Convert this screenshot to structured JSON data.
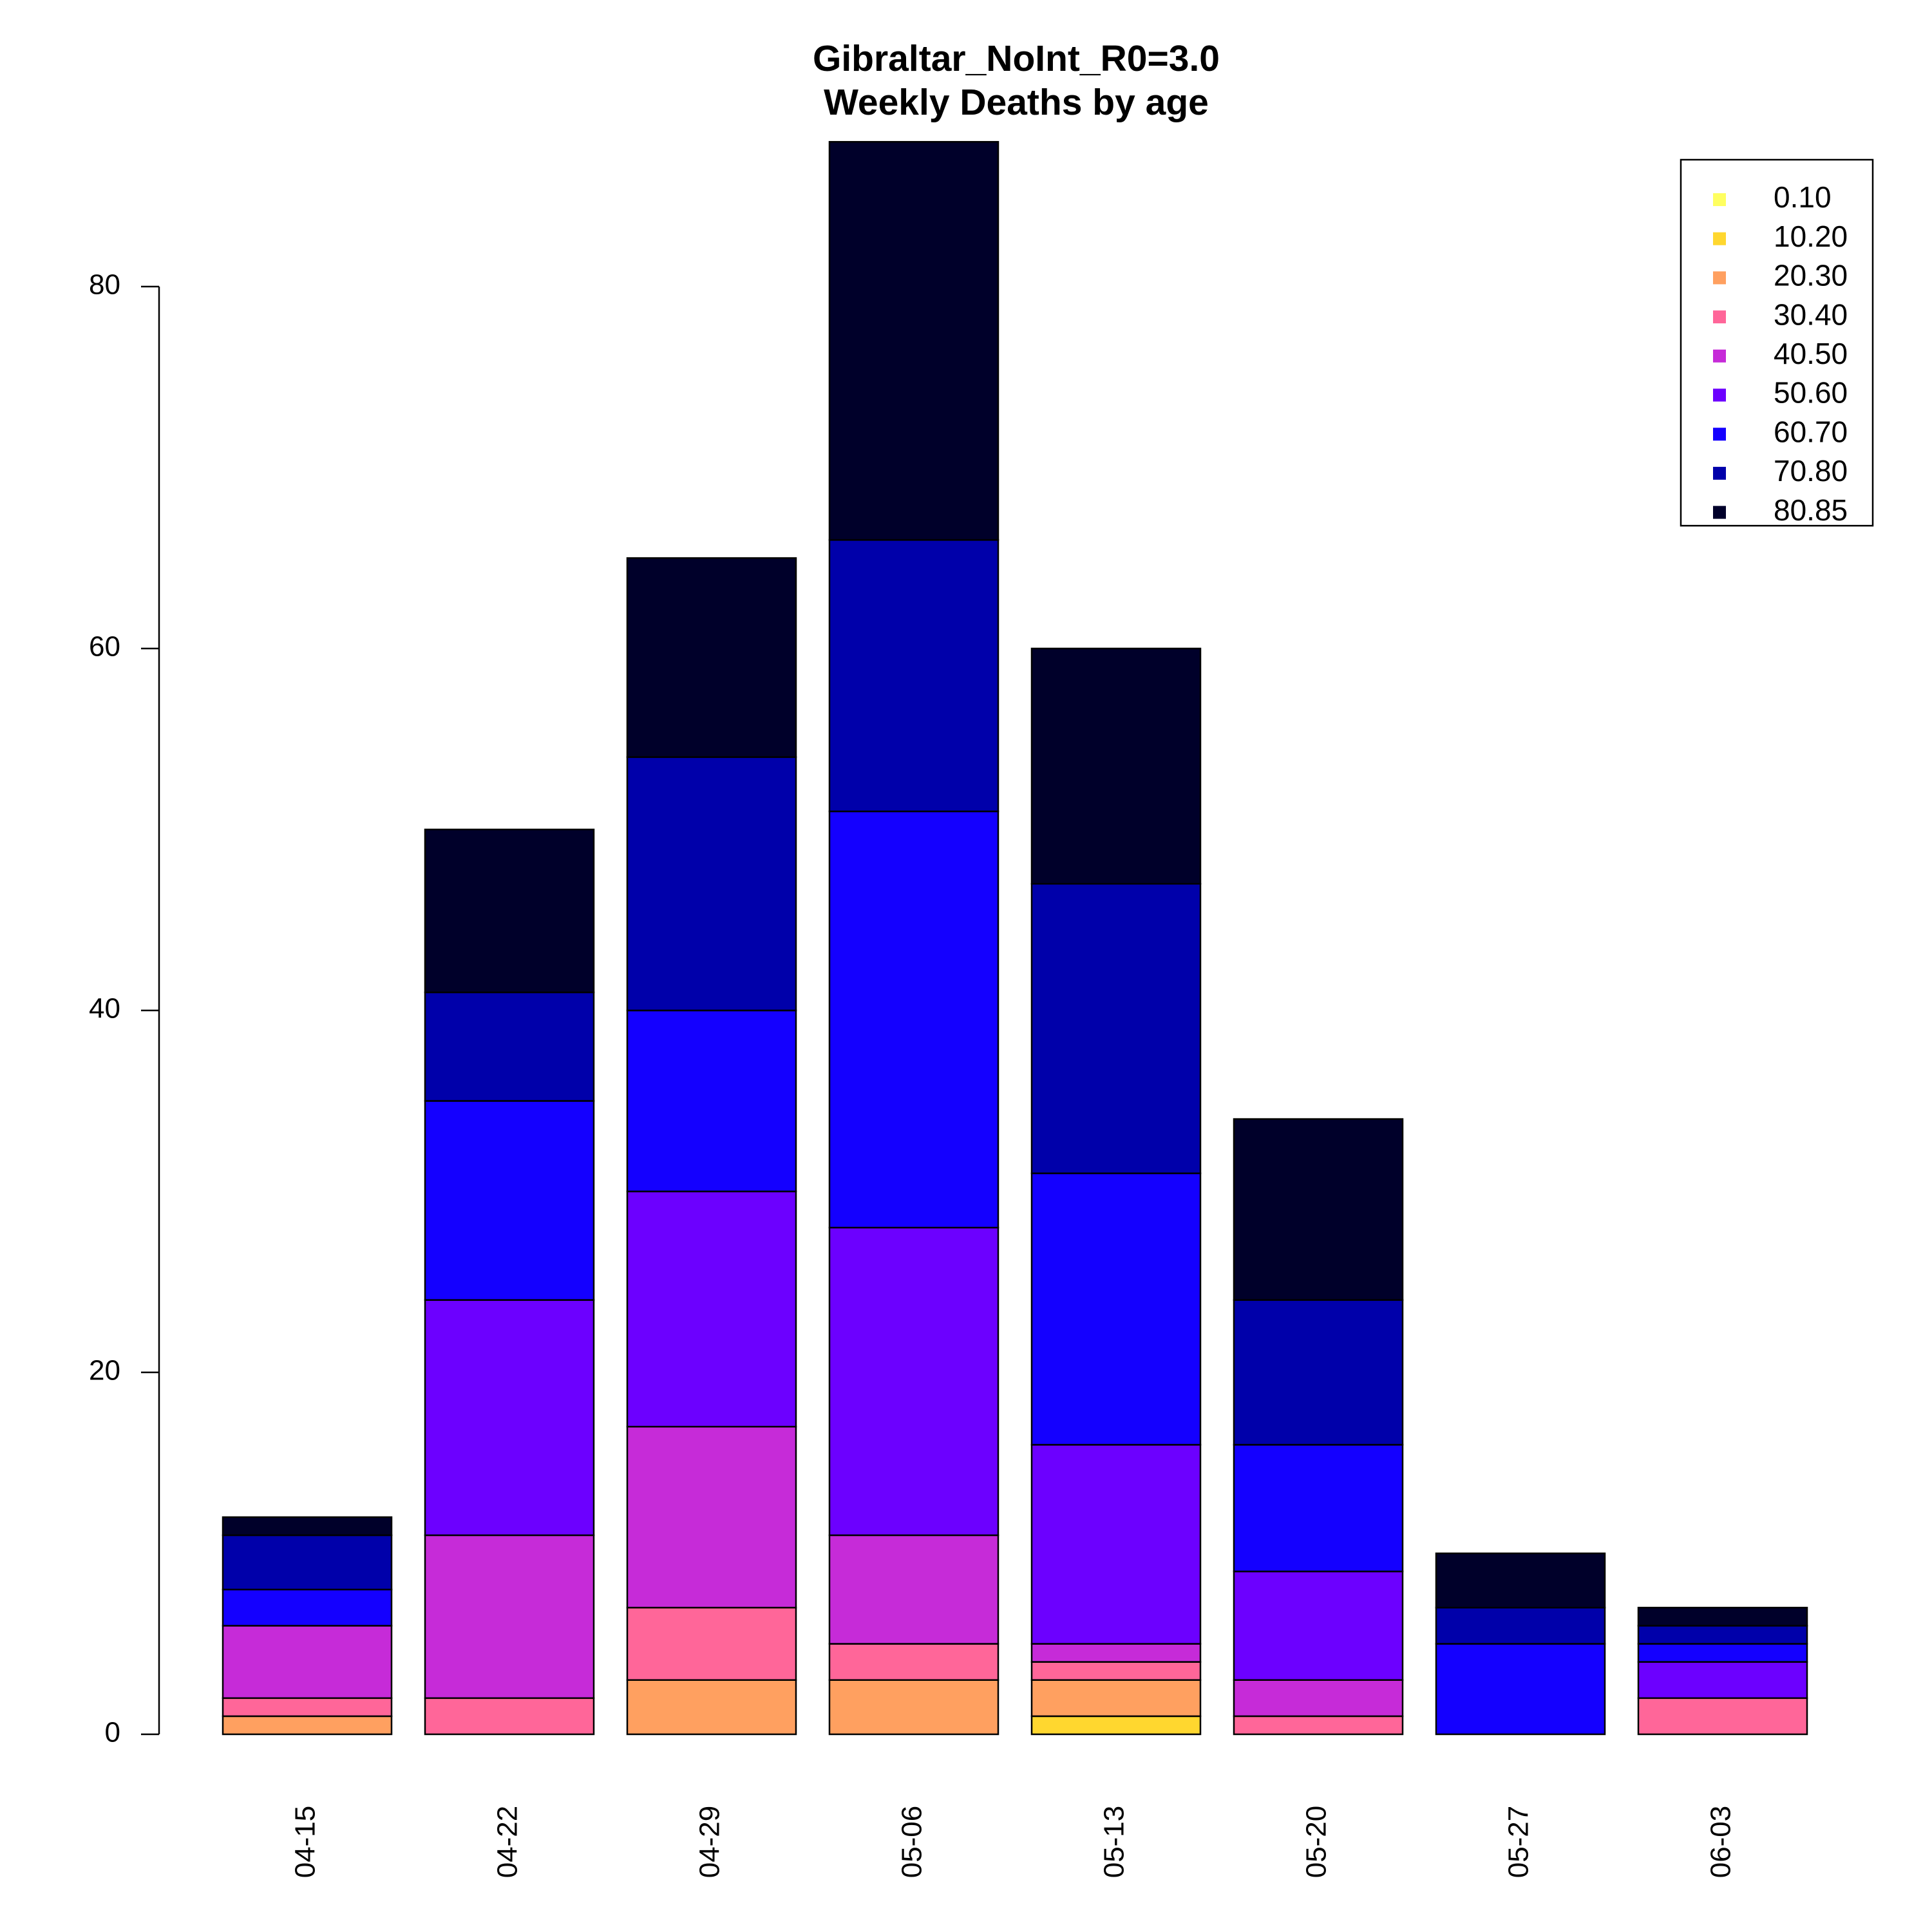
{
  "chart_data": {
    "type": "bar",
    "stacked": true,
    "title": "Gibraltar_NoInt_R0=3.0",
    "subtitle": "Weekly Deaths by age",
    "xlabel": "",
    "ylabel": "",
    "ylim": [
      0,
      88
    ],
    "yticks": [
      0,
      20,
      40,
      60,
      80
    ],
    "grid": false,
    "legend_position": "top-right",
    "categories": [
      "04-15",
      "04-22",
      "04-29",
      "05-06",
      "05-13",
      "05-20",
      "05-27",
      "06-03"
    ],
    "series": [
      {
        "name": "0.10",
        "color": "#ffff60",
        "values": [
          0,
          0,
          0,
          0,
          0,
          0,
          0,
          0
        ]
      },
      {
        "name": "10.20",
        "color": "#ffd72f",
        "values": [
          0,
          0,
          0,
          0,
          1,
          0,
          0,
          0
        ]
      },
      {
        "name": "20.30",
        "color": "#ffa060",
        "values": [
          1,
          0,
          3,
          3,
          2,
          0,
          0,
          0
        ]
      },
      {
        "name": "30.40",
        "color": "#ff6699",
        "values": [
          1,
          2,
          4,
          2,
          1,
          1,
          0,
          2
        ]
      },
      {
        "name": "40.50",
        "color": "#c62bd8",
        "values": [
          4,
          9,
          10,
          6,
          1,
          2,
          0,
          0
        ]
      },
      {
        "name": "50.60",
        "color": "#6c00ff",
        "values": [
          0,
          13,
          13,
          17,
          11,
          6,
          0,
          2
        ]
      },
      {
        "name": "60.70",
        "color": "#1400ff",
        "values": [
          2,
          11,
          10,
          23,
          15,
          7,
          5,
          1
        ]
      },
      {
        "name": "70.80",
        "color": "#0000aa",
        "values": [
          3,
          6,
          14,
          15,
          16,
          8,
          2,
          1
        ]
      },
      {
        "name": "80.85",
        "color": "#00002a",
        "values": [
          1,
          9,
          11,
          22,
          13,
          10,
          3,
          1
        ]
      }
    ]
  }
}
